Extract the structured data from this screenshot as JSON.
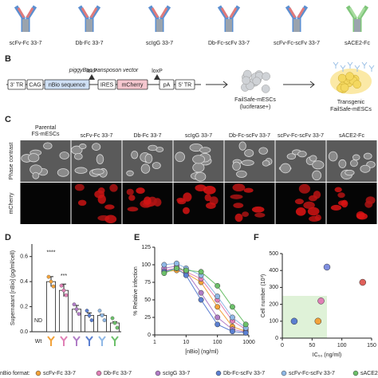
{
  "panel_labels": [
    "B",
    "C",
    "D",
    "E",
    "F"
  ],
  "formats": [
    "scFv-Fc 33-7",
    "Db-Fc 33-7",
    "scIgG 33-7",
    "Db-Fc-scFv 33-7",
    "scFv-Fc-scFv 33-7",
    "sACE2-Fc"
  ],
  "panel_b": {
    "vector_title": "piggyBac transposon vector",
    "elements": [
      "3' TR",
      "CAG",
      "nBio sequence",
      "IRES",
      "mCherry",
      "pA",
      "5' TR"
    ],
    "loxp": [
      "loxP",
      "loxP"
    ],
    "cells": [
      "FailSafe-mESCs",
      "(luciferase+)"
    ],
    "transgenic": [
      "Transgenic",
      "FailSafe-mESCs"
    ]
  },
  "panel_c": {
    "parental": [
      "Parental",
      "FS-mESCs"
    ],
    "rows": [
      "Phase contrast",
      "mCherry"
    ]
  },
  "legend_title": "nBio format:",
  "chart_data": [
    {
      "type": "bar",
      "ylabel": "Supernatant [nBio] (pg/ml/cell)",
      "categories": [
        "Wt",
        null,
        null,
        null,
        null,
        null,
        null
      ],
      "values": [
        null,
        0.4,
        0.33,
        0.18,
        0.13,
        0.13,
        0.07
      ],
      "errors": [
        null,
        0.04,
        0.05,
        0.03,
        0.02,
        0.01,
        0.01
      ],
      "color": "#ffffff",
      "annotations": [
        "ND",
        "****",
        "***"
      ],
      "ylim": [
        0,
        0.7
      ],
      "yticks": [
        {
          "value": 0,
          "label": "0.0"
        },
        {
          "value": 0.2,
          "label": "0.2"
        },
        {
          "value": 0.4,
          "label": "0.4"
        },
        {
          "value": 0.6,
          "label": "0.6"
        }
      ]
    },
    {
      "type": "line",
      "ylabel": "% Relative infection",
      "xlabel": "[nBio] (ng/ml)",
      "x": [
        2,
        5,
        10,
        30,
        100,
        300,
        800
      ],
      "xscale": "log",
      "xlim": [
        1,
        1000
      ],
      "xticks": [
        1,
        10,
        100,
        1000
      ],
      "ylim": [
        0,
        125
      ],
      "yticks": [
        0,
        25,
        50,
        75,
        100,
        125
      ],
      "series": [
        {
          "name": "scFv-Fc 33-7",
          "color": "#f2a23a",
          "values": [
            90,
            92,
            88,
            75,
            40,
            12,
            5
          ]
        },
        {
          "name": "Db-Fc 33-7",
          "color": "#e07fb5",
          "values": [
            92,
            95,
            90,
            80,
            50,
            20,
            8
          ]
        },
        {
          "name": "scIgG 33-7",
          "color": "#b07cc6",
          "values": [
            95,
            98,
            90,
            60,
            25,
            8,
            4
          ]
        },
        {
          "name": "Db-Fc-scFv 33-7",
          "color": "#5b7fd1",
          "values": [
            90,
            95,
            85,
            50,
            15,
            5,
            3
          ]
        },
        {
          "name": "scFv-Fc-scFv 33-7",
          "color": "#8fb8e6",
          "values": [
            100,
            102,
            95,
            85,
            55,
            25,
            10
          ]
        },
        {
          "name": "sACE2-Fc",
          "color": "#6cc06a",
          "values": [
            88,
            95,
            92,
            90,
            70,
            40,
            15
          ]
        }
      ]
    },
    {
      "type": "scatter",
      "ylabel": "Cell number (10³)",
      "xlabel": "IC₅₀ (ng/ml)",
      "x": [
        20,
        60,
        65,
        75,
        135
      ],
      "values": [
        100,
        100,
        220,
        420,
        330
      ],
      "colors": [
        "#5b7fd1",
        "#f2a23a",
        "#e07fb5",
        "#7f8fe0",
        "#e0605a"
      ],
      "xlim": [
        0,
        150
      ],
      "xticks": [
        0,
        50,
        100,
        150
      ],
      "ylim": [
        0,
        500
      ],
      "yticks": [
        0,
        100,
        200,
        300,
        400,
        500
      ],
      "highlight": {
        "xlim": [
          0,
          75
        ],
        "ylim": [
          0,
          250
        ],
        "color": "#dff2d8"
      }
    }
  ]
}
